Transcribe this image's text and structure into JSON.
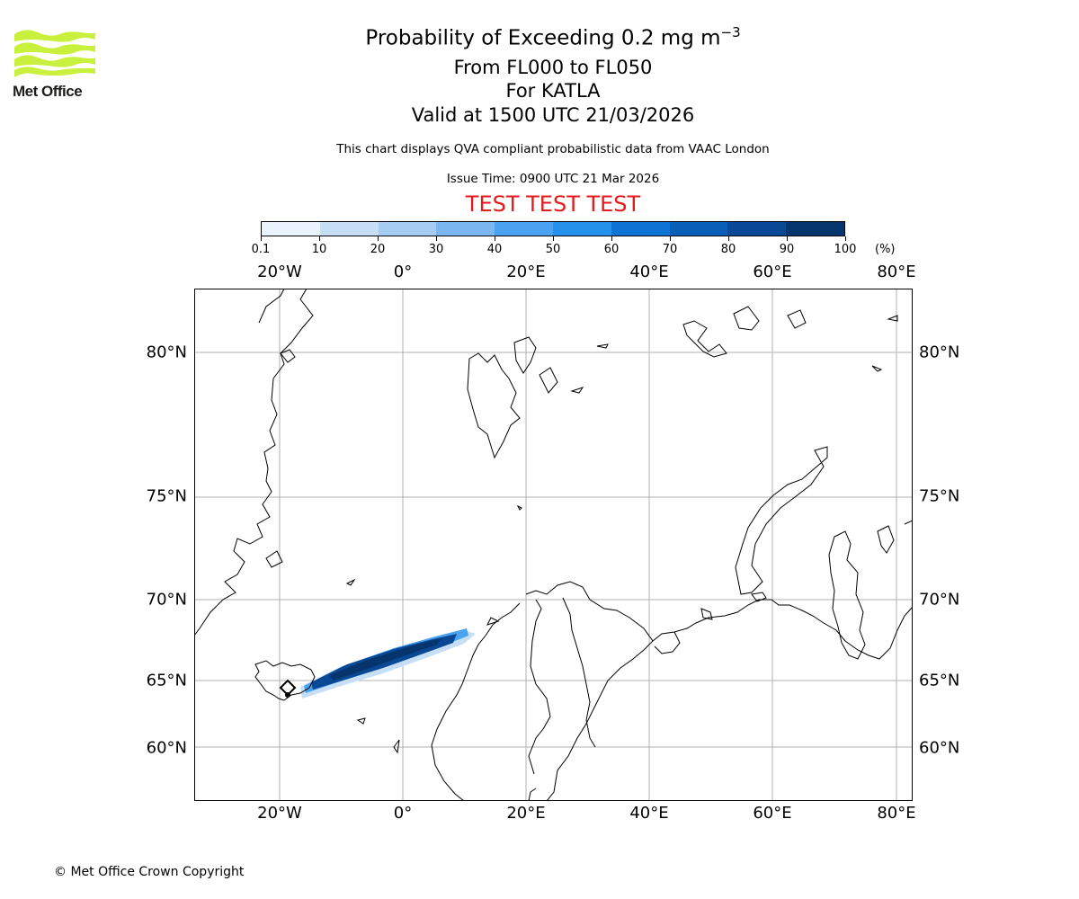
{
  "logo": {
    "text": "Met Office",
    "accent": "#c8f03c"
  },
  "title": {
    "line1_prefix": "Probability of Exceeding 0.2 mg m",
    "line1_exponent": "−3",
    "line2": "From FL000 to FL050",
    "line3": "For KATLA",
    "line4": "Valid at 1500 UTC 21/03/2026"
  },
  "info": {
    "disclaimer": "This chart displays QVA compliant probabilistic data from VAAC London",
    "issue_time": "Issue Time: 0900 UTC 21 Mar 2026",
    "test_banner": "TEST TEST TEST"
  },
  "colorbar": {
    "labels": [
      "0.1",
      "10",
      "20",
      "30",
      "40",
      "50",
      "60",
      "70",
      "80",
      "90",
      "100"
    ],
    "unit": "(%)",
    "colors": [
      "#eaf3fd",
      "#c6def6",
      "#a5ccf2",
      "#7ab7f0",
      "#4aa2f0",
      "#2590ea",
      "#0f74d4",
      "#0a5eb8",
      "#084894",
      "#06346c"
    ]
  },
  "map": {
    "lon_labels": [
      "20°W",
      "0°",
      "20°E",
      "40°E",
      "60°E",
      "80°E"
    ],
    "lat_labels": [
      "80°N",
      "75°N",
      "70°N",
      "65°N",
      "60°N"
    ],
    "source_volcano": "KATLA",
    "grid": true
  },
  "footer": {
    "copyright": "© Met Office Crown Copyright"
  }
}
